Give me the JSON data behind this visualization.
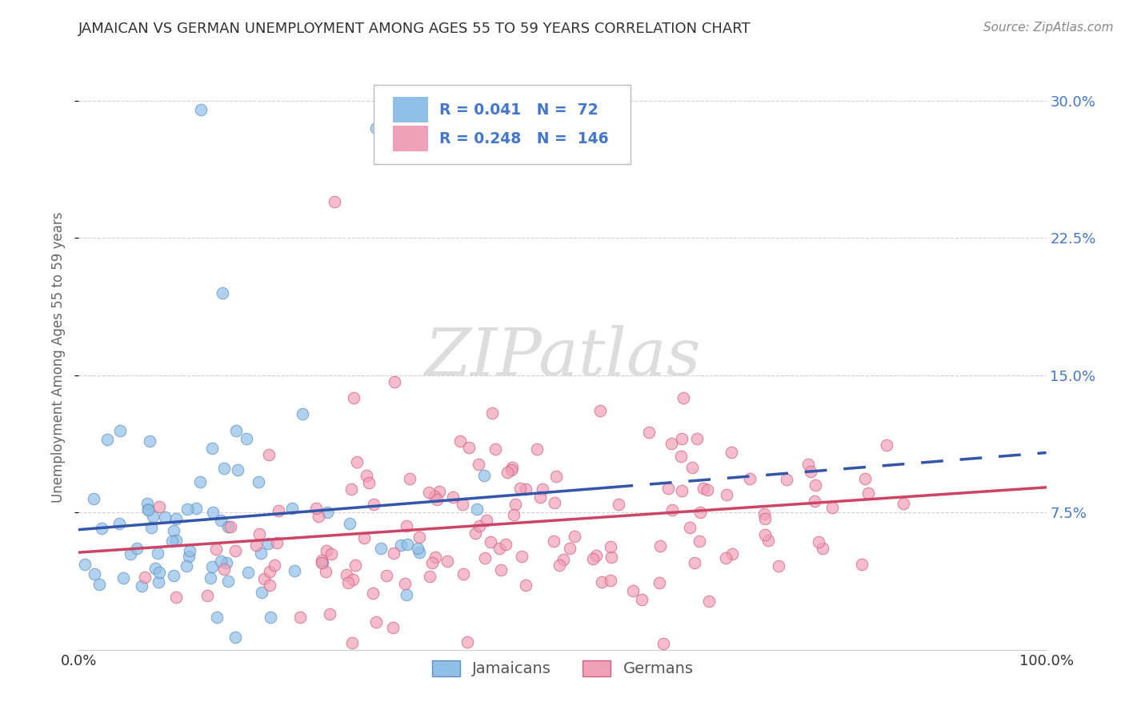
{
  "title": "JAMAICAN VS GERMAN UNEMPLOYMENT AMONG AGES 55 TO 59 YEARS CORRELATION CHART",
  "source": "Source: ZipAtlas.com",
  "ylabel": "Unemployment Among Ages 55 to 59 years",
  "xlim": [
    0.0,
    1.0
  ],
  "ylim": [
    0.0,
    0.32
  ],
  "ytick_vals": [
    0.075,
    0.15,
    0.225,
    0.3
  ],
  "ytick_labels": [
    "7.5%",
    "15.0%",
    "22.5%",
    "30.0%"
  ],
  "jamaicans_color": "#90C0E8",
  "jamaicans_edge_color": "#6090C0",
  "germans_color": "#F0A0B8",
  "germans_edge_color": "#D06080",
  "jamaicans_line_color": "#3355AA",
  "germans_line_color": "#CC4466",
  "legend_text_color": "#4477CC",
  "R_jamaicans": 0.041,
  "N_jamaicans": 72,
  "R_germans": 0.248,
  "N_germans": 146,
  "background_color": "#FFFFFF",
  "grid_color": "#CCCCCC",
  "title_color": "#333333",
  "axis_label_color": "#666666",
  "source_color": "#888888",
  "watermark_color": "#DDDDDD",
  "jam_seed": 77,
  "ger_seed": 99,
  "n_jam": 72,
  "n_ger": 146
}
